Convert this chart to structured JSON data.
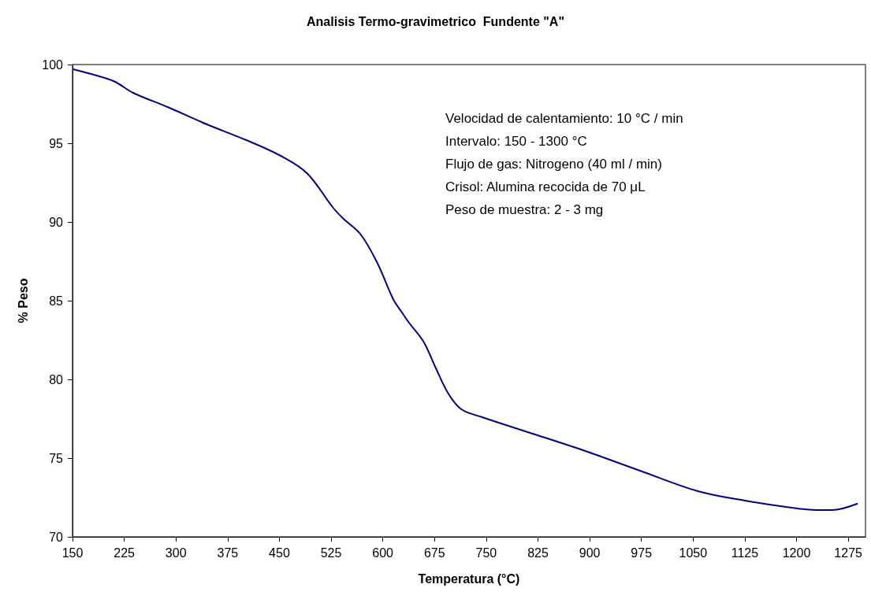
{
  "chart_data": {
    "type": "line",
    "title": "Analisis Termo-gravimetrico  Fundente \"A\"",
    "xlabel": "Temperatura (°C)",
    "ylabel": "% Peso",
    "annotations": [
      "Velocidad de calentamiento: 10 °C / min",
      "Intervalo: 150 - 1300 °C",
      "Flujo de gas: Nitrogeno (40 ml / min)",
      "Crisol: Alumina recocida de 70 μL",
      "Peso de muestra: 2 - 3 mg"
    ],
    "x": [
      151,
      193,
      212,
      238,
      288,
      345,
      402,
      452,
      490,
      528,
      543,
      568,
      592,
      615,
      627,
      638,
      659,
      676,
      695,
      714,
      744,
      821,
      897,
      973,
      1057,
      1125,
      1201,
      1228,
      1251,
      1288
    ],
    "series": [
      {
        "color": "#000080",
        "values": [
          99.7,
          99.2,
          98.9,
          98.2,
          97.3,
          96.2,
          95.2,
          94.2,
          93.1,
          90.9,
          90.2,
          89.2,
          87.4,
          85.1,
          84.3,
          83.6,
          82.4,
          80.8,
          79.1,
          78.1,
          77.6,
          76.5,
          75.4,
          74.2,
          72.9,
          72.3,
          71.8,
          71.7,
          71.7,
          72.1
        ]
      }
    ],
    "xlim": [
      150,
      1300
    ],
    "xticks": [
      150,
      225,
      300,
      375,
      450,
      525,
      600,
      675,
      750,
      825,
      900,
      975,
      1050,
      1125,
      1200,
      1275
    ],
    "ylim": [
      70,
      100
    ],
    "yticks": [
      70,
      75,
      80,
      85,
      90,
      95,
      100
    ],
    "grid": false,
    "marker": "none",
    "line_style": "solid"
  }
}
